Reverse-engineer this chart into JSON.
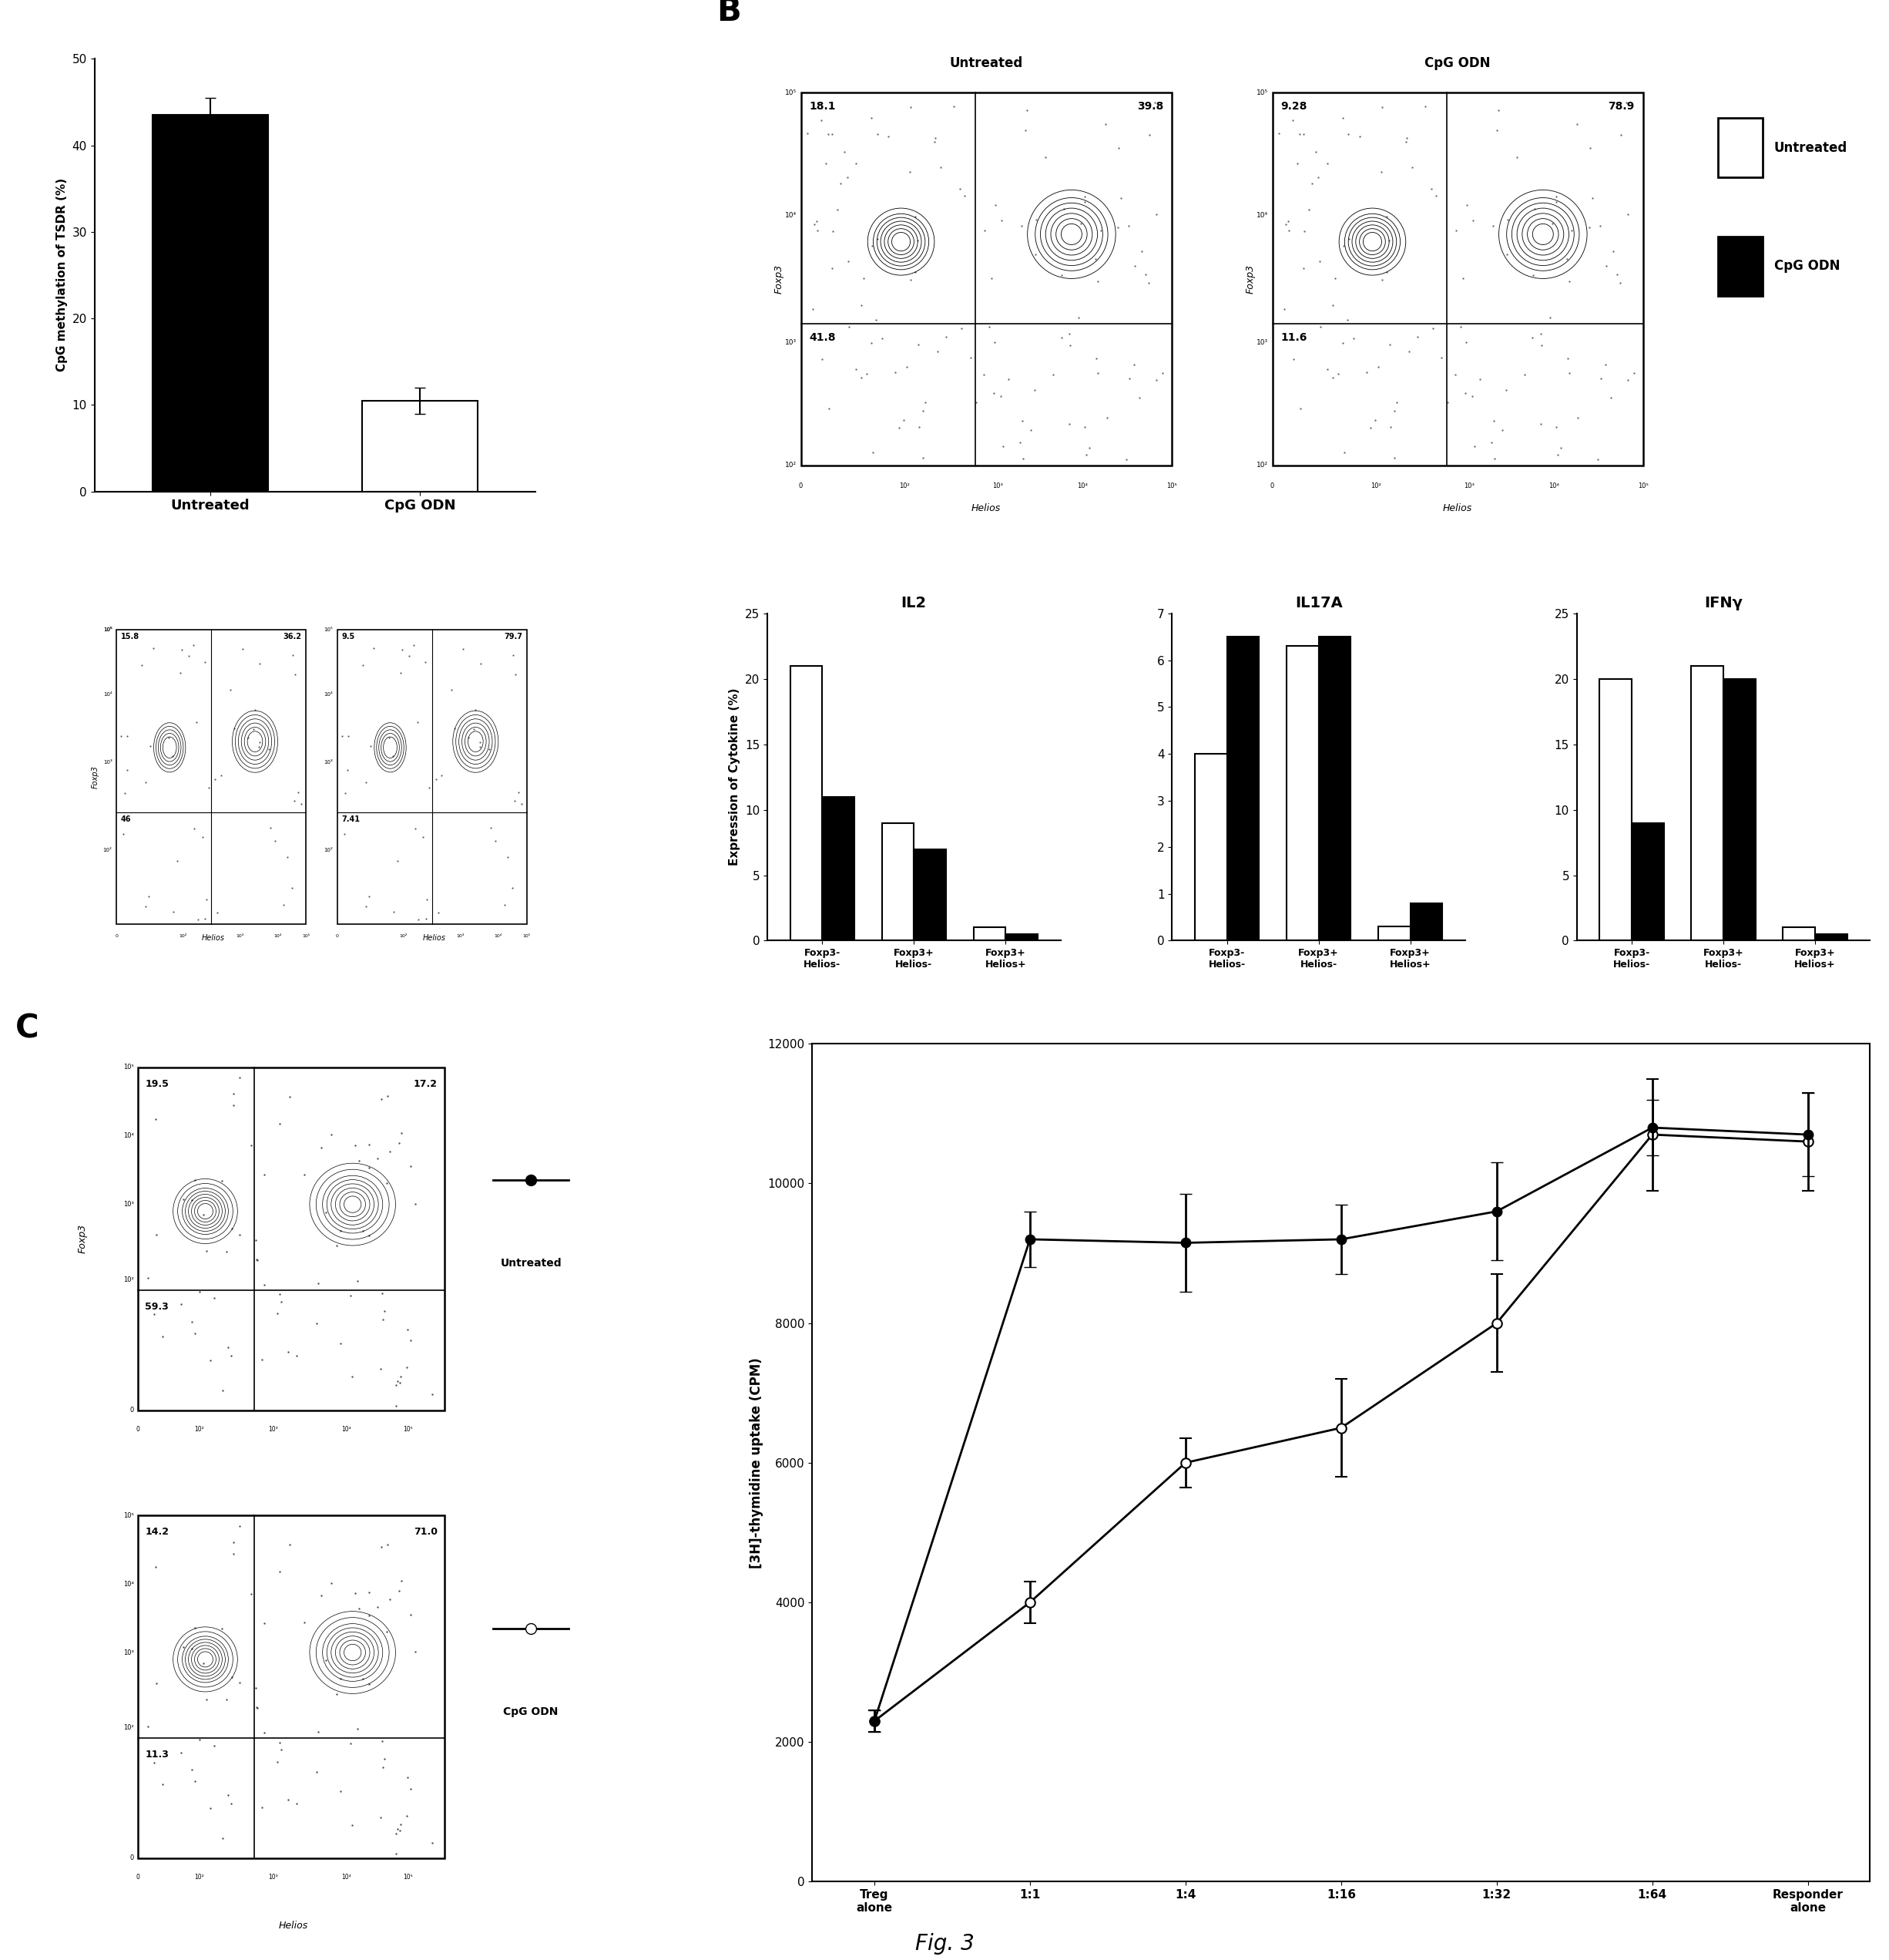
{
  "panel_A": {
    "bar_values": [
      43.5,
      10.5
    ],
    "bar_errors": [
      2.0,
      1.5
    ],
    "bar_colors": [
      "#000000",
      "#ffffff"
    ],
    "bar_edge_colors": [
      "#000000",
      "#000000"
    ],
    "categories": [
      "Untreated",
      "CpG ODN"
    ],
    "ylabel": "CpG methylation of TSDR (%)",
    "ylim": [
      0,
      50
    ],
    "yticks": [
      0,
      10,
      20,
      30,
      40,
      50
    ],
    "flow_numbers_untreated": {
      "UL": "15.8",
      "UR": "36.2",
      "LL": "46",
      "LR": ""
    },
    "flow_numbers_cpgodn": {
      "UL": "9.5",
      "UR": "79.7",
      "LL": "7.41",
      "LR": ""
    }
  },
  "panel_B_flow": {
    "untreated_numbers": {
      "UL": "18.1",
      "UR": "39.8",
      "LL": "41.8",
      "LR": ""
    },
    "cpgodn_numbers": {
      "UL": "9.28",
      "UR": "78.9",
      "LL": "11.6",
      "LR": ""
    }
  },
  "panel_B_bars": {
    "IL2": {
      "title": "IL2",
      "ylabel": "Expression of Cytokine (%)",
      "ylim": [
        0,
        25
      ],
      "yticks": [
        0,
        5,
        10,
        15,
        20,
        25
      ],
      "categories": [
        "Foxp3-\nHelios-",
        "Foxp3+\nHelios-",
        "Foxp3+\nHelios+"
      ],
      "untreated": [
        21,
        9,
        1
      ],
      "cpgodn": [
        11,
        7,
        0.5
      ]
    },
    "IL17A": {
      "title": "IL17A",
      "ylabel": "",
      "ylim": [
        0,
        7
      ],
      "yticks": [
        0,
        1,
        2,
        3,
        4,
        5,
        6,
        7
      ],
      "categories": [
        "Foxp3-\nHelios-",
        "Foxp3+\nHelios-",
        "Foxp3+\nHelios+"
      ],
      "untreated": [
        4,
        6.3,
        0.3
      ],
      "cpgodn": [
        6.5,
        6.5,
        0.8
      ]
    },
    "IFNg": {
      "title": "IFNγ",
      "ylabel": "",
      "ylim": [
        0,
        25
      ],
      "yticks": [
        0,
        5,
        10,
        15,
        20,
        25
      ],
      "categories": [
        "Foxp3-\nHelios-",
        "Foxp3+\nHelios-",
        "Foxp3+\nHelios+"
      ],
      "untreated": [
        20,
        21,
        1
      ],
      "cpgodn": [
        9,
        20,
        0.5
      ]
    }
  },
  "legend_B": {
    "labels": [
      "Untreated",
      "CpG ODN"
    ],
    "colors": [
      "#ffffff",
      "#000000"
    ]
  },
  "panel_C": {
    "flow_untreated": {
      "UL": "19.5",
      "UR": "17.2",
      "LL": "59.3",
      "LR": ""
    },
    "flow_cpgodn": {
      "UL": "14.2",
      "UR": "71.0",
      "LL": "11.3",
      "LR": ""
    },
    "line_untreated": {
      "x": [
        0,
        1,
        2,
        3,
        4,
        5,
        6
      ],
      "y": [
        2300,
        9200,
        9150,
        9200,
        9600,
        10800,
        10700
      ],
      "errors": [
        150,
        400,
        700,
        500,
        700,
        400,
        600
      ],
      "label": "Untreated"
    },
    "line_cpgodn": {
      "x": [
        0,
        1,
        2,
        3,
        4,
        5,
        6
      ],
      "y": [
        2300,
        4000,
        6000,
        6500,
        8000,
        10700,
        10600
      ],
      "errors": [
        150,
        300,
        350,
        700,
        700,
        800,
        700
      ],
      "label": "CpG ODN"
    },
    "xlabel_ticks": [
      "Treg\nalone",
      "1:1",
      "1:4",
      "1:16",
      "1:32",
      "1:64",
      "Responder\nalone"
    ],
    "ylabel": "[3H]-thymidine uptake (CPM)",
    "ylim": [
      0,
      12000
    ],
    "yticks": [
      0,
      2000,
      4000,
      6000,
      8000,
      10000,
      12000
    ]
  }
}
